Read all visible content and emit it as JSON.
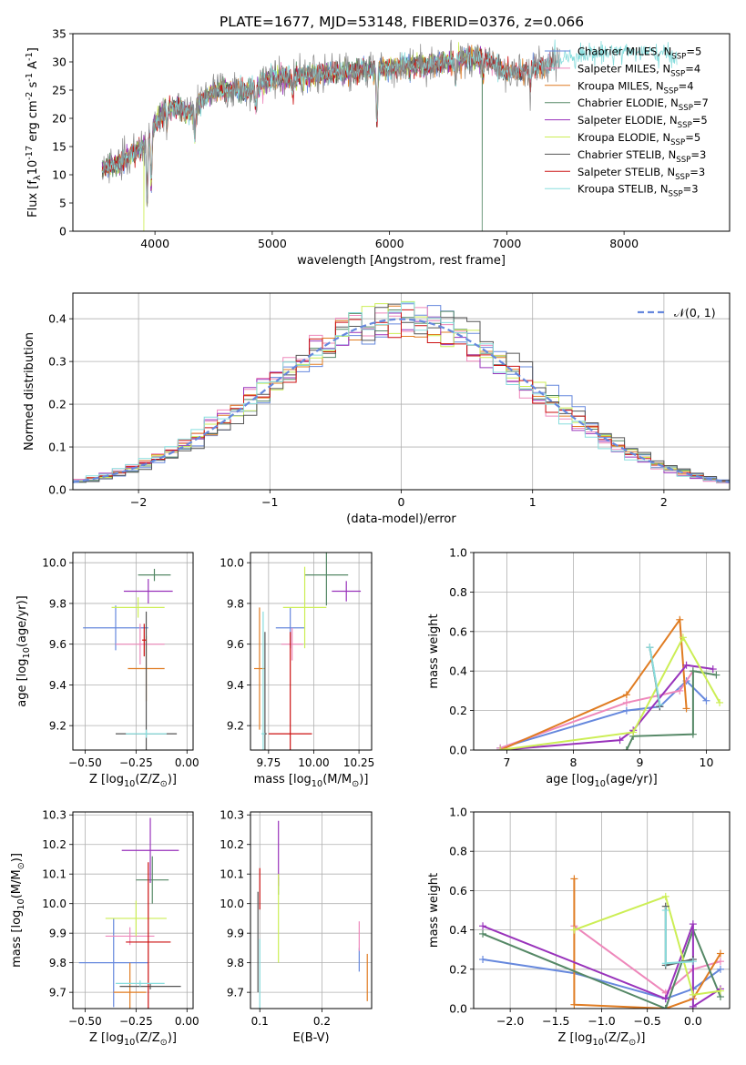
{
  "figure_title": "PLATE=1677, MJD=53148, FIBERID=0376, z=0.066",
  "models": [
    {
      "label": "Chabrier MILES, N$_{SSP}$=5",
      "color": "#6688dd"
    },
    {
      "label": "Salpeter MILES, N$_{SSP}$=4",
      "color": "#ee88bb"
    },
    {
      "label": "Kroupa MILES, N$_{SSP}$=4",
      "color": "#e07c22"
    },
    {
      "label": "Chabrier ELODIE, N$_{SSP}$=7",
      "color": "#558866"
    },
    {
      "label": "Salpeter ELODIE, N$_{SSP}$=5",
      "color": "#9933bb"
    },
    {
      "label": "Kroupa ELODIE, N$_{SSP}$=5",
      "color": "#ccee55"
    },
    {
      "label": "Chabrier STELIB, N$_{SSP}$=3",
      "color": "#555555"
    },
    {
      "label": "Salpeter STELIB, N$_{SSP}$=3",
      "color": "#cc1111"
    },
    {
      "label": "Kroupa STELIB, N$_{SSP}$=3",
      "color": "#88dddd"
    }
  ],
  "chart_data": [
    {
      "id": "spectrum",
      "type": "line",
      "xlabel": "wavelength [Angstrom, rest frame]",
      "ylabel": "Flux [f$_\\lambda$10$^{-17}$ erg cm$^{-2}$ s$^{-1}$ A$^{-1}$]",
      "xlim": [
        3300,
        8900
      ],
      "ylim": [
        0,
        35
      ],
      "xticks": [
        4000,
        5000,
        6000,
        7000,
        8000
      ],
      "yticks": [
        0,
        5,
        10,
        15,
        20,
        25,
        30,
        35
      ],
      "grid": false,
      "legend": "upper right",
      "data_color": "#888888",
      "wavelength_range": [
        3550,
        8450
      ],
      "continuum": [
        [
          3550,
          11
        ],
        [
          3700,
          12
        ],
        [
          3900,
          15
        ],
        [
          4000,
          19
        ],
        [
          4100,
          22
        ],
        [
          4300,
          21
        ],
        [
          4500,
          25
        ],
        [
          4800,
          25
        ],
        [
          5000,
          27
        ],
        [
          5500,
          28
        ],
        [
          6000,
          29
        ],
        [
          6500,
          30
        ],
        [
          6800,
          31
        ],
        [
          7000,
          28
        ],
        [
          7300,
          29
        ],
        [
          7500,
          31
        ],
        [
          8000,
          32
        ],
        [
          8450,
          31
        ]
      ],
      "absorption_features": [
        [
          3933,
          11
        ],
        [
          3968,
          10
        ],
        [
          4102,
          4
        ],
        [
          4340,
          5
        ],
        [
          4861,
          4
        ],
        [
          5175,
          3
        ],
        [
          5893,
          10
        ],
        [
          6563,
          4
        ],
        [
          6800,
          3
        ],
        [
          7200,
          3
        ]
      ],
      "model_end_wavelength": [
        7400,
        7400,
        7400,
        6800,
        6800,
        6800,
        7400,
        7400,
        8450
      ],
      "model_drop_wavelength": [
        null,
        null,
        7405,
        6790,
        null,
        3905,
        null,
        null,
        null
      ]
    },
    {
      "id": "residuals",
      "type": "histogram",
      "xlabel": "(data-model)/error",
      "ylabel": "Normed distribution",
      "xlim": [
        -2.5,
        2.5
      ],
      "ylim": [
        0,
        0.46
      ],
      "xticks": [
        -2,
        -1,
        0,
        1,
        2
      ],
      "yticks": [
        0.0,
        0.1,
        0.2,
        0.3,
        0.4
      ],
      "grid": true,
      "bin_width": 0.1,
      "reference_curve": {
        "name": "$\\mathcal{N}(0, 1)$",
        "mean": 0,
        "sigma": 1,
        "color": "#6688dd"
      },
      "legend": "upper right"
    },
    {
      "id": "age_vs_Z",
      "type": "scatter",
      "xlabel": "Z [log$_{10}$(Z/Z$_\\odot$)]",
      "ylabel": "age  [log$_{10}$(age/yr)]",
      "xlim": [
        -0.56,
        0.03
      ],
      "ylim": [
        9.08,
        10.05
      ],
      "xticks": [
        -0.5,
        -0.25,
        0.0
      ],
      "yticks": [
        9.2,
        9.4,
        9.6,
        9.8,
        10.0
      ],
      "grid": true,
      "points": [
        {
          "model": 0,
          "x": -0.35,
          "y": 9.68,
          "xerr": 0.16,
          "yerr": 0.11
        },
        {
          "model": 1,
          "x": -0.23,
          "y": 9.6,
          "xerr": 0.12,
          "yerr": 0.1
        },
        {
          "model": 2,
          "x": -0.2,
          "y": 9.48,
          "xerr": 0.09,
          "yerr": 0.16
        },
        {
          "model": 3,
          "x": -0.16,
          "y": 9.94,
          "xerr": 0.08,
          "yerr": 0.03
        },
        {
          "model": 4,
          "x": -0.19,
          "y": 9.86,
          "xerr": 0.12,
          "yerr": 0.06
        },
        {
          "model": 5,
          "x": -0.24,
          "y": 9.78,
          "xerr": 0.13,
          "yerr": 0.05
        },
        {
          "model": 6,
          "x": -0.2,
          "y": 9.16,
          "xerr": 0.15,
          "yerr": 0.6
        },
        {
          "model": 7,
          "x": -0.21,
          "y": 9.62,
          "xerr": 0.01,
          "yerr": 0.08
        },
        {
          "model": 8,
          "x": -0.2,
          "y": 9.16,
          "xerr": 0.1,
          "yerr": 0.02
        }
      ]
    },
    {
      "id": "age_vs_mass",
      "type": "scatter",
      "xlabel": "mass [log$_{10}$(M/M$_\\odot$)]",
      "ylabel": "",
      "xlim": [
        9.65,
        10.32
      ],
      "ylim": [
        9.08,
        10.05
      ],
      "xticks": [
        9.75,
        10.0,
        10.25
      ],
      "yticks": [
        9.2,
        9.4,
        9.6,
        9.8,
        10.0
      ],
      "grid": true,
      "points": [
        {
          "model": 0,
          "x": 9.87,
          "y": 9.68,
          "xerr": 0.08,
          "yerr": 0.1
        },
        {
          "model": 1,
          "x": 9.88,
          "y": 9.6,
          "xerr": 0.06,
          "yerr": 0.08
        },
        {
          "model": 2,
          "x": 9.7,
          "y": 9.48,
          "xerr": 0.03,
          "yerr": 0.3
        },
        {
          "model": 3,
          "x": 10.07,
          "y": 9.94,
          "xerr": 0.12,
          "yerr": 0.15
        },
        {
          "model": 4,
          "x": 10.18,
          "y": 9.86,
          "xerr": 0.08,
          "yerr": 0.05
        },
        {
          "model": 5,
          "x": 9.95,
          "y": 9.78,
          "xerr": 0.12,
          "yerr": 0.2
        },
        {
          "model": 6,
          "x": 9.73,
          "y": 9.16,
          "xerr": 0.01,
          "yerr": 0.5
        },
        {
          "model": 7,
          "x": 9.87,
          "y": 9.16,
          "xerr": 0.12,
          "yerr": 0.5
        },
        {
          "model": 8,
          "x": 9.72,
          "y": 9.16,
          "xerr": 0.01,
          "yerr": 0.6
        }
      ]
    },
    {
      "id": "weight_vs_age",
      "type": "line",
      "xlabel": "age  [log$_{10}$(age/yr)]",
      "ylabel": "mass weight",
      "xlim": [
        6.5,
        10.35
      ],
      "ylim": [
        0,
        1
      ],
      "xticks": [
        7,
        8,
        9,
        10
      ],
      "yticks": [
        0.0,
        0.2,
        0.4,
        0.6,
        0.8,
        1.0
      ],
      "grid": true,
      "series": [
        {
          "model": 0,
          "points": [
            [
              6.9,
              0.01
            ],
            [
              8.8,
              0.2
            ],
            [
              9.3,
              0.22
            ],
            [
              9.7,
              0.35
            ],
            [
              10.0,
              0.25
            ]
          ]
        },
        {
          "model": 1,
          "points": [
            [
              6.9,
              0.01
            ],
            [
              8.8,
              0.24
            ],
            [
              9.6,
              0.3
            ],
            [
              9.8,
              0.4
            ]
          ]
        },
        {
          "model": 2,
          "points": [
            [
              6.9,
              0.0
            ],
            [
              8.8,
              0.28
            ],
            [
              9.6,
              0.66
            ],
            [
              9.7,
              0.21
            ]
          ]
        },
        {
          "model": 3,
          "points": [
            [
              8.8,
              0.0
            ],
            [
              8.9,
              0.07
            ],
            [
              9.8,
              0.08
            ],
            [
              9.8,
              0.4
            ],
            [
              10.15,
              0.38
            ]
          ]
        },
        {
          "model": 4,
          "points": [
            [
              6.9,
              0.0
            ],
            [
              8.7,
              0.05
            ],
            [
              8.9,
              0.1
            ],
            [
              9.7,
              0.43
            ],
            [
              10.1,
              0.41
            ]
          ]
        },
        {
          "model": 5,
          "points": [
            [
              6.9,
              0.0
            ],
            [
              8.9,
              0.09
            ],
            [
              9.65,
              0.57
            ],
            [
              10.2,
              0.24
            ]
          ]
        },
        {
          "model": 6,
          "points": [
            [
              9.15,
              0.52
            ],
            [
              9.3,
              0.22
            ]
          ]
        },
        {
          "model": 8,
          "points": [
            [
              9.15,
              0.52
            ],
            [
              9.3,
              0.23
            ]
          ]
        }
      ]
    },
    {
      "id": "mass_vs_Z",
      "type": "scatter",
      "xlabel": "Z [log$_{10}$(Z/Z$_\\odot$)]",
      "ylabel": "mass [log$_{10}$(M/M$_\\odot$)]",
      "xlim": [
        -0.56,
        0.03
      ],
      "ylim": [
        9.645,
        10.31
      ],
      "xticks": [
        -0.5,
        -0.25,
        0.0
      ],
      "yticks": [
        9.7,
        9.8,
        9.9,
        10.0,
        10.1,
        10.2,
        10.3
      ],
      "grid": true,
      "points": [
        {
          "model": 0,
          "x": -0.36,
          "y": 9.8,
          "xerr": 0.17,
          "yerr": 0.15
        },
        {
          "model": 1,
          "x": -0.28,
          "y": 9.89,
          "xerr": 0.12,
          "yerr": 0.03
        },
        {
          "model": 2,
          "x": -0.28,
          "y": 9.7,
          "xerr": 0.08,
          "yerr": 0.1
        },
        {
          "model": 3,
          "x": -0.17,
          "y": 10.08,
          "xerr": 0.08,
          "yerr": 0.08
        },
        {
          "model": 4,
          "x": -0.18,
          "y": 10.18,
          "xerr": 0.14,
          "yerr": 0.11
        },
        {
          "model": 5,
          "x": -0.25,
          "y": 9.95,
          "xerr": 0.15,
          "yerr": 0.06
        },
        {
          "model": 6,
          "x": -0.18,
          "y": 9.72,
          "xerr": 0.15,
          "yerr": 0.01
        },
        {
          "model": 7,
          "x": -0.19,
          "y": 9.87,
          "xerr": 0.11,
          "yerr": 0.27
        },
        {
          "model": 8,
          "x": -0.23,
          "y": 9.73,
          "xerr": 0.12,
          "yerr": 0.01
        }
      ]
    },
    {
      "id": "mass_vs_ebv",
      "type": "scatter",
      "xlabel": "E(B-V)",
      "ylabel": "",
      "xlim": [
        0.085,
        0.28
      ],
      "ylim": [
        9.645,
        10.31
      ],
      "xticks": [
        0.1,
        0.2
      ],
      "yticks": [
        9.7,
        9.8,
        9.9,
        10.0,
        10.1,
        10.2,
        10.3
      ],
      "grid": true,
      "points": [
        {
          "model": 0,
          "x": 0.26,
          "y": 9.81,
          "xerr": 0.0,
          "yerr": 0.04
        },
        {
          "model": 1,
          "x": 0.26,
          "y": 9.89,
          "xerr": 0.0,
          "yerr": 0.05
        },
        {
          "model": 2,
          "x": 0.273,
          "y": 9.75,
          "xerr": 0.0,
          "yerr": 0.08
        },
        {
          "model": 3,
          "x": 0.13,
          "y": 10.06,
          "xerr": 0.0,
          "yerr": 0.03
        },
        {
          "model": 4,
          "x": 0.13,
          "y": 10.17,
          "xerr": 0.0,
          "yerr": 0.11
        },
        {
          "model": 5,
          "x": 0.13,
          "y": 9.95,
          "xerr": 0.0,
          "yerr": 0.15
        },
        {
          "model": 6,
          "x": 0.097,
          "y": 9.87,
          "xerr": 0.0,
          "yerr": 0.17
        },
        {
          "model": 7,
          "x": 0.1,
          "y": 10.05,
          "xerr": 0.0,
          "yerr": 0.07
        },
        {
          "model": 8,
          "x": 0.1,
          "y": 9.73,
          "xerr": 0.0,
          "yerr": 0.15
        }
      ]
    },
    {
      "id": "weight_vs_Z",
      "type": "line",
      "xlabel": "Z [log$_{10}$(Z/Z$_\\odot$)]",
      "ylabel": "mass weight",
      "xlim": [
        -2.4,
        0.4
      ],
      "ylim": [
        0,
        1
      ],
      "xticks": [
        -2.0,
        -1.5,
        -1.0,
        -0.5,
        0.0
      ],
      "yticks": [
        0.0,
        0.2,
        0.4,
        0.6,
        0.8,
        1.0
      ],
      "grid": true,
      "series": [
        {
          "model": 0,
          "points": [
            [
              -2.3,
              0.25
            ],
            [
              -1.3,
              0.18
            ],
            [
              -0.3,
              0.05
            ],
            [
              0.0,
              0.1
            ],
            [
              0.3,
              0.2
            ]
          ]
        },
        {
          "model": 1,
          "points": [
            [
              -1.3,
              0.42
            ],
            [
              -0.3,
              0.08
            ],
            [
              0.0,
              0.2
            ],
            [
              0.3,
              0.24
            ]
          ]
        },
        {
          "model": 2,
          "points": [
            [
              -1.3,
              0.66
            ],
            [
              -1.3,
              0.02
            ],
            [
              -0.3,
              0.0
            ],
            [
              0.0,
              0.05
            ],
            [
              0.3,
              0.28
            ]
          ]
        },
        {
          "model": 3,
          "points": [
            [
              -2.3,
              0.38
            ],
            [
              -0.3,
              0.0
            ],
            [
              0.0,
              0.4
            ],
            [
              0.3,
              0.06
            ]
          ]
        },
        {
          "model": 4,
          "points": [
            [
              -2.3,
              0.42
            ],
            [
              -0.3,
              0.05
            ],
            [
              0.0,
              0.43
            ],
            [
              0.0,
              0.01
            ],
            [
              0.3,
              0.1
            ]
          ]
        },
        {
          "model": 5,
          "points": [
            [
              -1.3,
              0.4
            ],
            [
              -0.3,
              0.57
            ],
            [
              0.0,
              0.07
            ],
            [
              0.3,
              0.09
            ]
          ]
        },
        {
          "model": 6,
          "points": [
            [
              -0.3,
              0.52
            ],
            [
              -0.3,
              0.22
            ],
            [
              0.0,
              0.25
            ]
          ]
        },
        {
          "model": 8,
          "points": [
            [
              -0.3,
              0.5
            ],
            [
              -0.3,
              0.23
            ],
            [
              0.0,
              0.24
            ]
          ]
        }
      ]
    }
  ]
}
